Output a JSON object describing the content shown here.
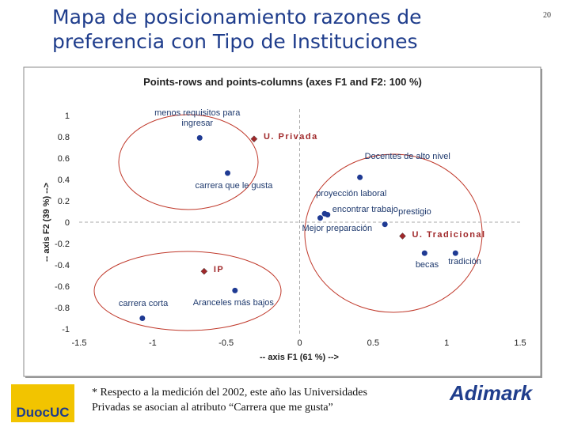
{
  "header": {
    "title_lines": [
      "Mapa de posicionamiento razones de",
      "preferencia con Tipo de Instituciones"
    ],
    "page_number": "20"
  },
  "chart_data": {
    "type": "scatter",
    "title": "Points-rows and points-columns (axes F1 and F2: 100 %)",
    "x_label": "-- axis F1 (61 %) -->",
    "y_label": "-- axis F2 (39 %) -->",
    "xlim": [
      -1.5,
      1.5
    ],
    "xticks": [
      -1.5,
      -1,
      -0.5,
      0,
      0.5,
      1,
      1.5
    ],
    "ylim": [
      -1,
      1
    ],
    "yticks": [
      1,
      0.8,
      0.6,
      0.4,
      0.2,
      0,
      -0.2,
      -0.4,
      -0.6,
      -0.8,
      -1
    ],
    "series": [
      {
        "color": "#1f3a93",
        "marker": "circle",
        "labels": [
          "menos requisitos para ingresar",
          "carrera que le gusta",
          "Docentes de alto nivel",
          "proyección laboral",
          "encontrar trabajo",
          "Mejor preparación",
          "prestigio",
          "becas",
          "tradición",
          "Aranceles más bajos",
          "carrera corta"
        ],
        "x": [
          -0.68,
          -0.49,
          0.41,
          0.17,
          0.19,
          0.14,
          0.58,
          0.85,
          1.06,
          -0.44,
          -1.07
        ],
        "values": [
          0.79,
          0.46,
          0.42,
          0.08,
          0.07,
          0.04,
          -0.02,
          -0.29,
          -0.29,
          -0.64,
          -0.9
        ]
      },
      {
        "color": "#a0282a",
        "marker": "diamond",
        "labels": [
          "U. Privada",
          "U. Tradicional",
          "IP"
        ],
        "x": [
          -0.31,
          0.7,
          -0.65
        ],
        "values": [
          0.78,
          -0.13,
          -0.46
        ]
      }
    ]
  },
  "footnote_lines": [
    "* Respecto a la medición del 2002, este año las Universidades",
    "Privadas se asocian al atributo “Carrera que me gusta”"
  ],
  "logos": {
    "left": "DuocUC",
    "right": "Adimark"
  }
}
